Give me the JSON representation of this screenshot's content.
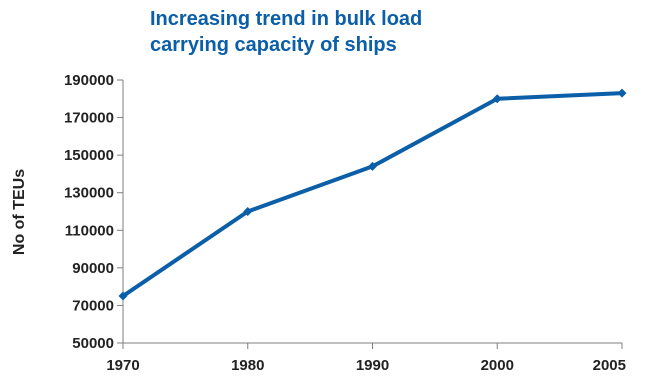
{
  "chart_data": {
    "type": "line",
    "title_lines": [
      "Increasing trend in bulk load",
      "carrying capacity of ships"
    ],
    "xlabel": "",
    "ylabel": "No of TEUs",
    "x": [
      1970,
      1980,
      1990,
      2000,
      2005
    ],
    "x_tick_labels": [
      "1970",
      "1980",
      "1990",
      "2000",
      "2005"
    ],
    "xlim": [
      1970,
      2005
    ],
    "x_scale": "categorical-evenly-spaced",
    "series": [
      {
        "values": [
          75000,
          120000,
          144000,
          180000,
          183000
        ],
        "color": "#0b5ea8"
      }
    ],
    "y_tick_labels": [
      "50000",
      "70000",
      "90000",
      "110000",
      "130000",
      "150000",
      "170000",
      "190000"
    ],
    "y_ticks": [
      50000,
      70000,
      90000,
      110000,
      130000,
      150000,
      170000,
      190000
    ],
    "ylim": [
      50000,
      190000
    ],
    "grid": false,
    "legend": "none"
  }
}
